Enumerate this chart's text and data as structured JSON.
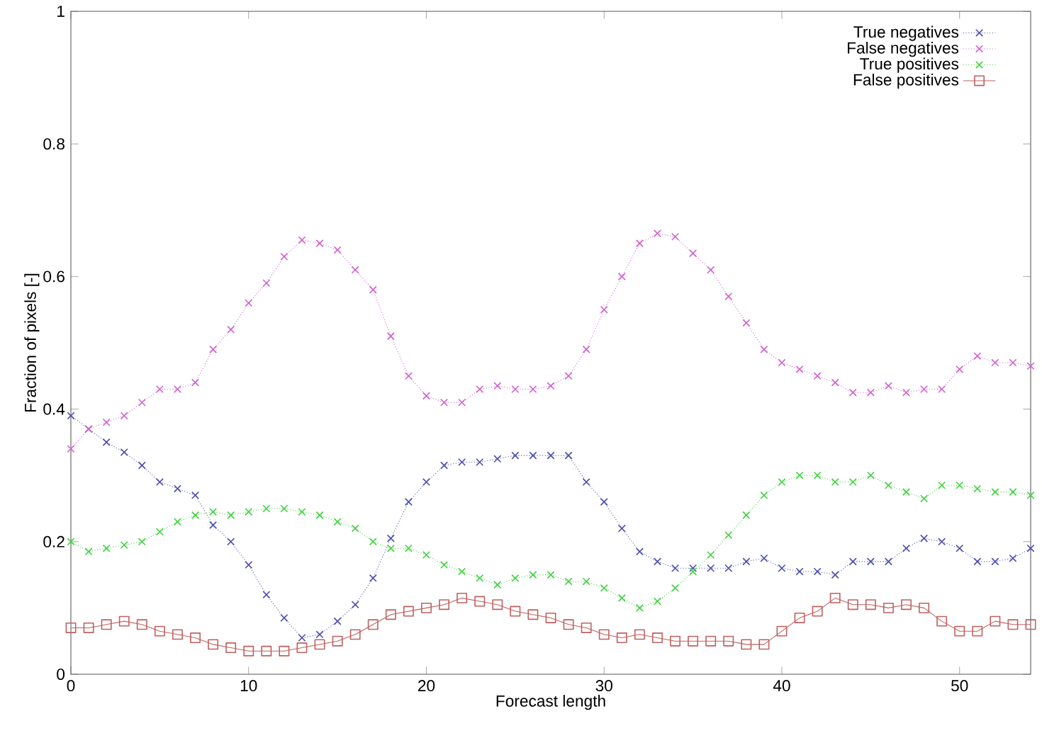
{
  "chart_data": {
    "type": "line",
    "xlabel": "Forecast length",
    "ylabel": "Fraction of pixels [-]",
    "x": [
      0,
      1,
      2,
      3,
      4,
      5,
      6,
      7,
      8,
      9,
      10,
      11,
      12,
      13,
      14,
      15,
      16,
      17,
      18,
      19,
      20,
      21,
      22,
      23,
      24,
      25,
      26,
      27,
      28,
      29,
      30,
      31,
      32,
      33,
      34,
      35,
      36,
      37,
      38,
      39,
      40,
      41,
      42,
      43,
      44,
      45,
      46,
      47,
      48,
      49,
      50,
      51,
      52,
      53,
      54
    ],
    "xlim": [
      0,
      54
    ],
    "ylim": [
      0,
      1
    ],
    "xticks": [
      0,
      10,
      20,
      30,
      40,
      50
    ],
    "yticks": [
      0,
      0.2,
      0.4,
      0.6,
      0.8,
      1
    ],
    "legend": "top right",
    "grid": false,
    "series": [
      {
        "name": "True negatives",
        "color": "#4b4bb0",
        "marker": "cross",
        "line_style": "dotted",
        "values": [
          0.39,
          0.37,
          0.35,
          0.335,
          0.315,
          0.29,
          0.28,
          0.27,
          0.225,
          0.2,
          0.165,
          0.12,
          0.085,
          0.055,
          0.06,
          0.08,
          0.105,
          0.145,
          0.205,
          0.26,
          0.29,
          0.315,
          0.32,
          0.32,
          0.325,
          0.33,
          0.33,
          0.33,
          0.33,
          0.29,
          0.26,
          0.22,
          0.185,
          0.17,
          0.16,
          0.16,
          0.16,
          0.16,
          0.17,
          0.175,
          0.16,
          0.155,
          0.155,
          0.15,
          0.17,
          0.17,
          0.17,
          0.19,
          0.205,
          0.2,
          0.19,
          0.17,
          0.17,
          0.175,
          0.19
        ]
      },
      {
        "name": "False negatives",
        "color": "#d060d0",
        "marker": "cross",
        "line_style": "dotted",
        "values": [
          0.34,
          0.37,
          0.38,
          0.39,
          0.41,
          0.43,
          0.43,
          0.44,
          0.49,
          0.52,
          0.56,
          0.59,
          0.63,
          0.655,
          0.65,
          0.64,
          0.61,
          0.58,
          0.51,
          0.45,
          0.42,
          0.41,
          0.41,
          0.43,
          0.435,
          0.43,
          0.43,
          0.435,
          0.45,
          0.49,
          0.55,
          0.6,
          0.65,
          0.665,
          0.66,
          0.635,
          0.61,
          0.57,
          0.53,
          0.49,
          0.47,
          0.46,
          0.45,
          0.44,
          0.425,
          0.425,
          0.435,
          0.425,
          0.43,
          0.43,
          0.46,
          0.48,
          0.47,
          0.47,
          0.465
        ]
      },
      {
        "name": "True positives",
        "color": "#40d040",
        "marker": "cross",
        "line_style": "dotted",
        "values": [
          0.2,
          0.185,
          0.19,
          0.195,
          0.2,
          0.215,
          0.23,
          0.24,
          0.245,
          0.24,
          0.245,
          0.25,
          0.25,
          0.245,
          0.24,
          0.23,
          0.22,
          0.2,
          0.19,
          0.19,
          0.18,
          0.165,
          0.155,
          0.145,
          0.135,
          0.145,
          0.15,
          0.15,
          0.14,
          0.14,
          0.13,
          0.115,
          0.1,
          0.11,
          0.13,
          0.155,
          0.18,
          0.21,
          0.24,
          0.27,
          0.29,
          0.3,
          0.3,
          0.29,
          0.29,
          0.3,
          0.285,
          0.275,
          0.265,
          0.285,
          0.285,
          0.28,
          0.275,
          0.275,
          0.27
        ]
      },
      {
        "name": "False positives",
        "color": "#c06060",
        "marker": "square",
        "line_style": "solid",
        "values": [
          0.07,
          0.07,
          0.075,
          0.08,
          0.075,
          0.065,
          0.06,
          0.055,
          0.045,
          0.04,
          0.035,
          0.035,
          0.035,
          0.04,
          0.045,
          0.05,
          0.06,
          0.075,
          0.09,
          0.095,
          0.1,
          0.105,
          0.115,
          0.11,
          0.105,
          0.095,
          0.09,
          0.085,
          0.075,
          0.07,
          0.06,
          0.055,
          0.06,
          0.055,
          0.05,
          0.05,
          0.05,
          0.05,
          0.045,
          0.045,
          0.065,
          0.085,
          0.095,
          0.115,
          0.105,
          0.105,
          0.1,
          0.105,
          0.1,
          0.08,
          0.065,
          0.065,
          0.08,
          0.075,
          0.075
        ]
      }
    ]
  }
}
